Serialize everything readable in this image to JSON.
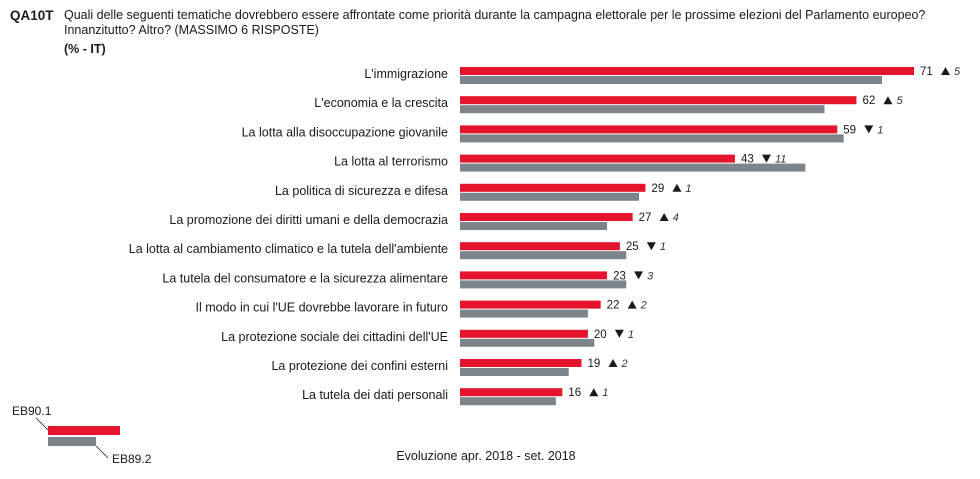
{
  "question": {
    "code": "QA10T",
    "text": "Quali delle seguenti tematiche dovrebbero essere affrontate come priorità durante la campagna elettorale per le prossime elezioni del Parlamento europeo? Innanzitutto? Altro? (MASSIMO 6 RISPOSTE)",
    "unit": "(% - IT)"
  },
  "colors": {
    "current": "#e3142c",
    "previous": "#7d858c",
    "arrow": "#1a1a1a"
  },
  "chart_data": {
    "type": "bar",
    "orientation": "horizontal",
    "categories": [
      "L'immigrazione",
      "L'economia e la crescita",
      "La lotta alla disoccupazione giovanile",
      "La lotta al terrorismo",
      "La politica di sicurezza e difesa",
      "La promozione dei diritti umani e della democrazia",
      "La lotta al cambiamento climatico e la tutela dell'ambiente",
      "La tutela del consumatore e la sicurezza alimentare",
      "Il modo in cui l'UE dovrebbe lavorare in futuro",
      "La protezione sociale dei cittadini dell'UE",
      "La protezione dei confini esterni",
      "La tutela dei dati personali"
    ],
    "series": [
      {
        "name": "EB90.1",
        "values": [
          71,
          62,
          59,
          43,
          29,
          27,
          25,
          23,
          22,
          20,
          19,
          16
        ]
      },
      {
        "name": "EB89.2",
        "values": [
          66,
          57,
          60,
          54,
          28,
          23,
          26,
          26,
          20,
          21,
          17,
          15
        ]
      }
    ],
    "changes": [
      {
        "dir": "up",
        "value": "5"
      },
      {
        "dir": "up",
        "value": "5"
      },
      {
        "dir": "down",
        "value": "1"
      },
      {
        "dir": "down",
        "value": "11"
      },
      {
        "dir": "up",
        "value": "1"
      },
      {
        "dir": "up",
        "value": "4"
      },
      {
        "dir": "down",
        "value": "1"
      },
      {
        "dir": "down",
        "value": "3"
      },
      {
        "dir": "up",
        "value": "2"
      },
      {
        "dir": "down",
        "value": "1"
      },
      {
        "dir": "up",
        "value": "2"
      },
      {
        "dir": "up",
        "value": "1"
      }
    ],
    "xlim": [
      0,
      71
    ],
    "legend": {
      "current": "EB90.1",
      "previous": "EB89.2",
      "position": "bottom-left"
    },
    "footnote": "Evoluzione apr. 2018 - set. 2018",
    "grid": false
  }
}
